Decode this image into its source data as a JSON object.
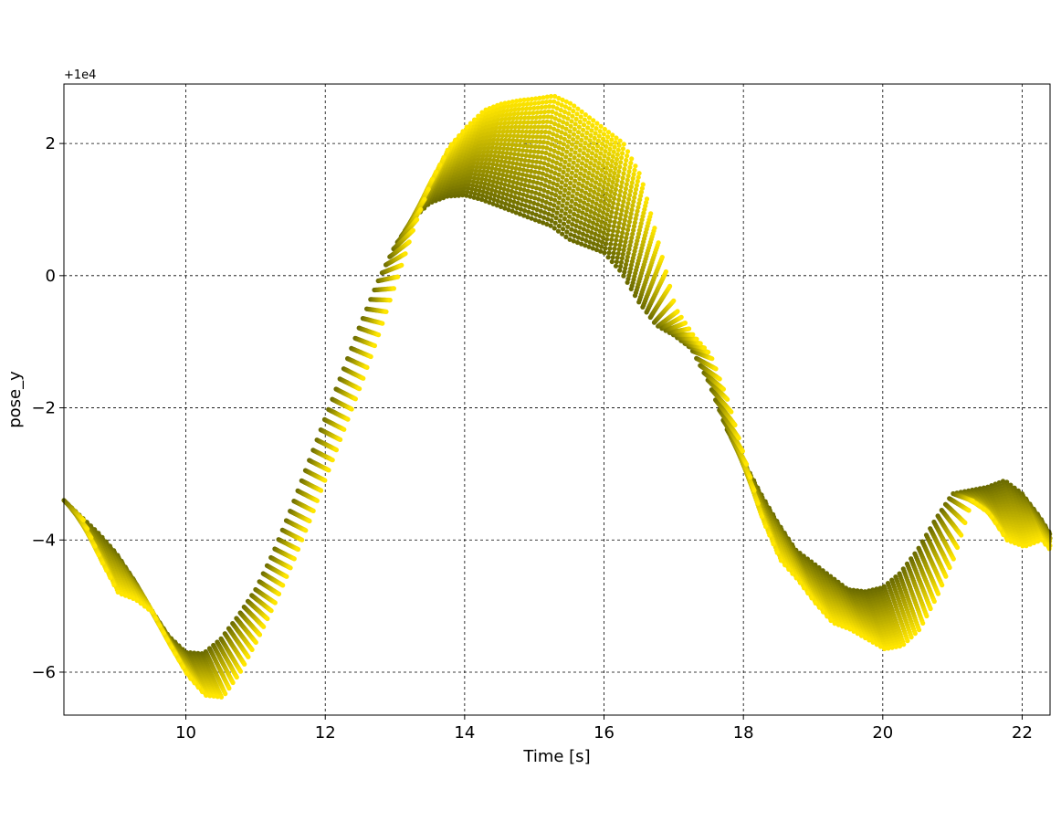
{
  "chart_data": {
    "type": "scatter",
    "title": "",
    "xlabel": "Time [s]",
    "ylabel": "pose_y",
    "y_offset_label": "+1e4",
    "xlim": [
      8.25,
      22.4
    ],
    "ylim": [
      -6.65,
      2.9
    ],
    "xticks": [
      10,
      12,
      14,
      16,
      18,
      20,
      22
    ],
    "yticks": [
      -6,
      -4,
      -2,
      0,
      2
    ],
    "xtick_labels": [
      "10",
      "12",
      "14",
      "16",
      "18",
      "20",
      "22"
    ],
    "ytick_labels": [
      "−6",
      "−4",
      "−2",
      "0",
      "2"
    ],
    "grid": true,
    "legend": "none",
    "color_start": "#6b6b00",
    "color_end": "#ffe600",
    "series_count": 25,
    "base_curve": {
      "x": [
        8.25,
        8.5,
        8.75,
        9.0,
        9.25,
        9.5,
        9.75,
        10.0,
        10.25,
        10.5,
        10.75,
        11.0,
        11.25,
        11.5,
        11.75,
        12.0,
        12.25,
        12.5,
        12.75,
        13.0,
        13.25,
        13.5,
        13.75,
        14.0,
        14.25,
        14.5,
        14.75,
        15.0,
        15.25,
        15.5,
        15.75,
        16.0,
        16.25,
        16.5,
        16.75,
        17.0,
        17.25,
        17.5,
        17.75,
        18.0,
        18.25,
        18.5,
        18.75,
        19.0,
        19.25,
        19.5,
        19.75,
        20.0,
        20.25,
        20.5,
        20.75,
        21.0,
        21.25,
        21.5,
        21.75,
        22.0,
        22.25,
        22.4
      ],
      "y": [
        -3.4,
        -3.65,
        -3.9,
        -4.2,
        -4.6,
        -5.05,
        -5.45,
        -5.7,
        -5.72,
        -5.5,
        -5.15,
        -4.75,
        -4.2,
        -3.55,
        -2.85,
        -2.15,
        -1.45,
        -0.75,
        -0.1,
        0.45,
        0.85,
        1.1,
        1.2,
        1.22,
        1.15,
        1.05,
        0.95,
        0.85,
        0.75,
        0.55,
        0.45,
        0.35,
        0.05,
        -0.4,
        -0.75,
        -0.9,
        -1.1,
        -1.6,
        -2.3,
        -2.8,
        -3.3,
        -3.75,
        -4.15,
        -4.35,
        -4.55,
        -4.75,
        -4.78,
        -4.72,
        -4.5,
        -4.15,
        -3.7,
        -3.3,
        -3.25,
        -3.2,
        -3.1,
        -3.3,
        -3.65,
        -3.9
      ]
    },
    "max_spread_curve": {
      "x": [
        8.25,
        8.5,
        8.75,
        9.0,
        9.25,
        9.5,
        9.75,
        10.0,
        10.25,
        10.5,
        10.75,
        11.0,
        11.25,
        11.5,
        11.75,
        12.0,
        12.25,
        12.5,
        12.75,
        13.0,
        13.25,
        13.5,
        13.75,
        14.0,
        14.25,
        14.5,
        14.75,
        15.0,
        15.25,
        15.5,
        15.75,
        16.0,
        16.25,
        16.5,
        16.75,
        17.0,
        17.25,
        17.5,
        17.75,
        18.0,
        18.25,
        18.5,
        18.75,
        19.0,
        19.25,
        19.5,
        19.75,
        20.0,
        20.25,
        20.5,
        20.75,
        21.0,
        21.25,
        21.5,
        21.75,
        22.0,
        22.25,
        22.4
      ],
      "y": [
        -3.7,
        -4.3,
        -4.8,
        -4.9,
        -5.1,
        -5.6,
        -6.05,
        -6.35,
        -6.38,
        -6.0,
        -5.5,
        -4.95,
        -4.35,
        -3.7,
        -3.0,
        -2.3,
        -1.6,
        -0.85,
        -0.05,
        0.75,
        1.45,
        1.95,
        2.25,
        2.5,
        2.6,
        2.65,
        2.68,
        2.72,
        2.6,
        2.4,
        2.2,
        2.0,
        1.5,
        0.5,
        -0.5,
        -0.9,
        -1.2,
        -1.9,
        -2.8,
        -3.7,
        -4.3,
        -4.6,
        -4.95,
        -5.25,
        -5.35,
        -5.5,
        -5.65,
        -5.6,
        -5.35,
        -4.85,
        -4.25,
        -3.4,
        -3.6,
        -4.0,
        -4.1,
        -4.0,
        -4.3,
        -4.75
      ]
    }
  }
}
